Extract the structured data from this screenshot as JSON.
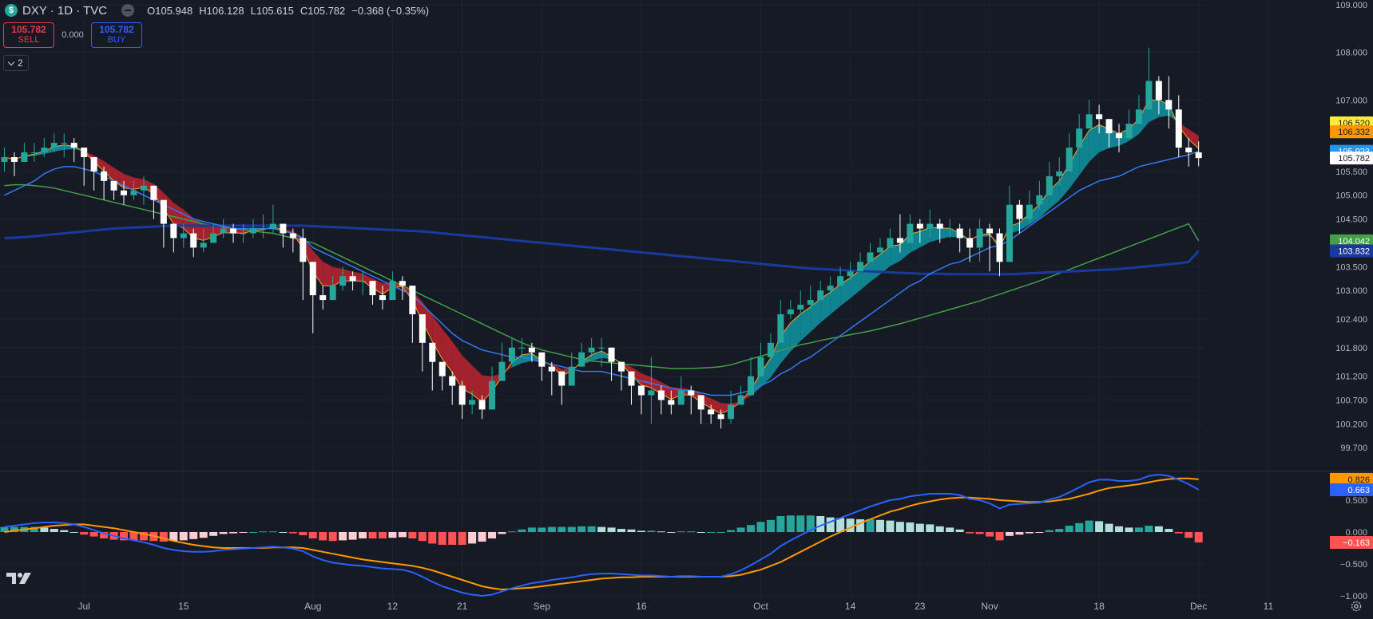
{
  "header": {
    "symbol_icon": "$",
    "symbol_title": "DXY · 1D · TVC",
    "ohlc": {
      "open": "O105.948",
      "high": "H106.128",
      "low": "L105.615",
      "close": "C105.782",
      "change": "−0.368 (−0.35%)"
    }
  },
  "trade": {
    "sell_price": "105.782",
    "sell_label": "SELL",
    "spread": "0.000",
    "buy_price": "105.782",
    "buy_label": "BUY"
  },
  "indicators_toggle": {
    "count": "2"
  },
  "icons": {
    "logo": "tradingview-logo-icon",
    "settings": "gear-icon",
    "collapse": "collapse-icon",
    "chevron": "chevron-down-icon"
  },
  "colors": {
    "background": "#161a25",
    "text": "#d1d4dc",
    "grid": "#1f2330",
    "up_candle": "#26a69a",
    "up_candle_alt": "#22ab94",
    "down_candle": "#ffffff",
    "ribbon_up": "#0f8f9c",
    "ribbon_down": "#b2232f",
    "fast_ma": "#f5a623",
    "ma_blue": "#3179f5",
    "ma_green": "#43a047",
    "ma_navy": "#1a3a9b",
    "macd": "#2962ff",
    "signal": "#ff9800",
    "hist_up": "#26a69a",
    "hist_up_fade": "#b2dfdb",
    "hist_down": "#ff5252",
    "hist_down_fade": "#ffcdd2"
  },
  "chart_data": {
    "type": "candlestick",
    "x_labels": [
      {
        "label": "Jul",
        "i": 8
      },
      {
        "label": "15",
        "i": 18
      },
      {
        "label": "Aug",
        "i": 31
      },
      {
        "label": "12",
        "i": 39
      },
      {
        "label": "21",
        "i": 46
      },
      {
        "label": "Sep",
        "i": 54
      },
      {
        "label": "16",
        "i": 64
      },
      {
        "label": "Oct",
        "i": 76
      },
      {
        "label": "14",
        "i": 85
      },
      {
        "label": "23",
        "i": 92
      },
      {
        "label": "Nov",
        "i": 99
      },
      {
        "label": "18",
        "i": 110
      },
      {
        "label": "Dec",
        "i": 120
      },
      {
        "label": "11",
        "i": 127
      }
    ],
    "y_ticks": [
      "109.000",
      "108.000",
      "107.000",
      "106.500",
      "105.500",
      "105.000",
      "104.500",
      "103.500",
      "103.000",
      "102.400",
      "101.800",
      "101.200",
      "100.700",
      "100.200",
      "99.700"
    ],
    "y_range": [
      99.3,
      109.1
    ],
    "macd_ticks": [
      "0.500",
      "0.000",
      "−0.500",
      "−1.000"
    ],
    "macd_range": [
      -1.1,
      0.9
    ],
    "price_labels": [
      {
        "value": 106.52,
        "text": "106.520",
        "bg": "#ffeb3b",
        "fg": "#131722"
      },
      {
        "value": 106.332,
        "text": "106.332",
        "bg": "#ff9800",
        "fg": "#131722"
      },
      {
        "value": 105.923,
        "text": "105.923",
        "bg": "#2196f3",
        "fg": "#ffffff"
      },
      {
        "value": 105.782,
        "text": "105.782",
        "bg": "#ffffff",
        "fg": "#131722"
      },
      {
        "value": 104.042,
        "text": "104.042",
        "bg": "#43a047",
        "fg": "#ffffff"
      },
      {
        "value": 103.832,
        "text": "103.832",
        "bg": "#1a3a9b",
        "fg": "#ffffff"
      }
    ],
    "macd_labels": [
      {
        "value": 0.826,
        "text": "0.826",
        "bg": "#ff9800",
        "fg": "#131722"
      },
      {
        "value": 0.663,
        "text": "0.663",
        "bg": "#2962ff",
        "fg": "#ffffff"
      },
      {
        "value": -0.163,
        "text": "−0.163",
        "bg": "#ff5252",
        "fg": "#ffffff"
      }
    ],
    "closes": [
      105.8,
      105.7,
      105.9,
      105.9,
      106.0,
      106.1,
      106.1,
      106.0,
      105.8,
      105.5,
      105.3,
      105.1,
      105.0,
      105.1,
      105.2,
      104.9,
      104.4,
      104.1,
      104.2,
      103.9,
      104.0,
      104.2,
      104.3,
      104.2,
      104.2,
      104.3,
      104.3,
      104.4,
      104.2,
      104.1,
      103.6,
      102.9,
      102.8,
      103.1,
      103.3,
      103.2,
      103.2,
      102.9,
      102.8,
      103.2,
      103.1,
      102.5,
      101.9,
      101.5,
      101.2,
      101.0,
      100.6,
      100.7,
      100.5,
      101.1,
      101.5,
      101.8,
      101.8,
      101.7,
      101.4,
      101.3,
      101.0,
      101.4,
      101.7,
      101.8,
      101.8,
      101.5,
      101.3,
      101.0,
      100.8,
      100.9,
      100.7,
      100.6,
      100.9,
      100.8,
      100.5,
      100.4,
      100.3,
      100.6,
      100.8,
      101.2,
      101.6,
      101.9,
      102.5,
      102.6,
      102.7,
      102.8,
      103.0,
      103.1,
      103.3,
      103.4,
      103.6,
      103.8,
      103.9,
      104.1,
      104.0,
      104.4,
      104.3,
      104.4,
      104.3,
      104.3,
      104.1,
      103.9,
      104.3,
      104.2,
      103.6,
      104.8,
      104.5,
      104.8,
      105.0,
      105.4,
      105.5,
      106.0,
      106.4,
      106.7,
      106.6,
      106.3,
      106.2,
      106.5,
      106.8,
      107.4,
      107.0,
      106.8,
      106.0,
      105.9,
      105.78
    ],
    "highs": [
      106.0,
      105.9,
      106.1,
      106.1,
      106.2,
      106.3,
      106.3,
      106.2,
      106.0,
      105.8,
      105.6,
      105.3,
      105.3,
      105.3,
      105.4,
      105.1,
      104.8,
      104.4,
      104.4,
      104.3,
      104.3,
      104.4,
      104.5,
      104.4,
      104.4,
      104.5,
      104.6,
      104.8,
      104.4,
      104.3,
      104.3,
      103.1,
      103.1,
      103.3,
      103.5,
      103.4,
      103.4,
      103.2,
      103.1,
      103.4,
      103.3,
      103.1,
      102.3,
      101.8,
      101.5,
      101.3,
      101.1,
      100.9,
      100.8,
      101.4,
      101.9,
      102.0,
      102.0,
      101.9,
      101.7,
      101.5,
      101.3,
      101.7,
      101.9,
      102.0,
      102.0,
      101.8,
      101.5,
      101.3,
      101.0,
      101.6,
      101.0,
      100.9,
      101.2,
      101.0,
      100.8,
      100.6,
      100.5,
      100.9,
      101.0,
      101.6,
      101.9,
      102.1,
      102.8,
      102.8,
      103.0,
      103.1,
      103.2,
      103.3,
      103.5,
      103.6,
      103.8,
      104.0,
      104.1,
      104.3,
      104.6,
      104.6,
      104.5,
      104.7,
      104.5,
      104.5,
      104.4,
      104.3,
      104.5,
      104.4,
      104.3,
      105.2,
      104.9,
      105.1,
      105.3,
      105.7,
      105.8,
      106.3,
      106.7,
      107.0,
      106.9,
      106.6,
      106.5,
      106.8,
      107.1,
      108.1,
      107.5,
      107.5,
      107.1,
      106.2,
      106.13
    ],
    "lows": [
      105.5,
      105.4,
      105.7,
      105.7,
      105.8,
      105.9,
      105.8,
      105.7,
      105.2,
      105.1,
      104.9,
      104.9,
      104.8,
      104.9,
      104.8,
      104.5,
      103.9,
      103.8,
      103.9,
      103.7,
      103.8,
      104.0,
      104.1,
      104.0,
      104.0,
      104.1,
      104.1,
      104.2,
      103.9,
      103.8,
      102.8,
      102.1,
      102.6,
      102.9,
      103.0,
      103.0,
      102.9,
      102.7,
      102.6,
      103.0,
      102.8,
      101.9,
      101.3,
      100.9,
      100.9,
      100.6,
      100.3,
      100.4,
      100.3,
      100.5,
      101.1,
      101.5,
      101.6,
      101.5,
      101.1,
      100.8,
      100.6,
      101.1,
      101.4,
      101.6,
      101.4,
      101.1,
      100.9,
      100.6,
      100.4,
      100.2,
      100.4,
      100.4,
      100.6,
      100.4,
      100.2,
      100.2,
      100.1,
      100.2,
      100.6,
      100.8,
      101.3,
      101.7,
      102.2,
      102.4,
      102.5,
      102.6,
      102.8,
      102.9,
      103.1,
      103.2,
      103.4,
      103.6,
      103.7,
      103.9,
      103.8,
      104.2,
      104.0,
      104.1,
      104.0,
      104.1,
      103.8,
      103.6,
      103.6,
      103.4,
      103.3,
      104.0,
      104.2,
      104.4,
      104.7,
      105.1,
      105.2,
      105.7,
      106.1,
      106.4,
      106.3,
      106.0,
      105.9,
      106.2,
      106.5,
      107.0,
      106.7,
      106.4,
      105.8,
      105.6,
      105.61
    ],
    "ma_blue": [
      105.0,
      105.1,
      105.2,
      105.3,
      105.45,
      105.55,
      105.6,
      105.6,
      105.55,
      105.5,
      105.4,
      105.3,
      105.2,
      105.1,
      105.0,
      104.9,
      104.8,
      104.7,
      104.6,
      104.5,
      104.45,
      104.4,
      104.35,
      104.3,
      104.3,
      104.3,
      104.3,
      104.3,
      104.25,
      104.2,
      104.1,
      103.9,
      103.8,
      103.7,
      103.6,
      103.5,
      103.4,
      103.3,
      103.2,
      103.1,
      103.0,
      102.9,
      102.7,
      102.5,
      102.3,
      102.1,
      101.95,
      101.85,
      101.75,
      101.7,
      101.65,
      101.6,
      101.6,
      101.55,
      101.5,
      101.45,
      101.4,
      101.35,
      101.3,
      101.3,
      101.3,
      101.25,
      101.2,
      101.15,
      101.1,
      101.05,
      101.0,
      100.95,
      100.9,
      100.9,
      100.85,
      100.8,
      100.8,
      100.8,
      100.85,
      100.9,
      101.0,
      101.1,
      101.25,
      101.35,
      101.5,
      101.6,
      101.75,
      101.9,
      102.05,
      102.2,
      102.35,
      102.5,
      102.65,
      102.8,
      102.95,
      103.1,
      103.2,
      103.35,
      103.45,
      103.55,
      103.6,
      103.7,
      103.8,
      103.9,
      103.95,
      104.05,
      104.2,
      104.35,
      104.5,
      104.65,
      104.8,
      104.95,
      105.1,
      105.2,
      105.3,
      105.35,
      105.4,
      105.5,
      105.6,
      105.65,
      105.7,
      105.75,
      105.8,
      105.85,
      105.923
    ],
    "ma_green": [
      105.2,
      105.22,
      105.22,
      105.2,
      105.18,
      105.15,
      105.1,
      105.05,
      105.0,
      104.95,
      104.9,
      104.85,
      104.8,
      104.75,
      104.7,
      104.65,
      104.6,
      104.55,
      104.5,
      104.45,
      104.4,
      104.36,
      104.33,
      104.3,
      104.28,
      104.25,
      104.22,
      104.2,
      104.15,
      104.1,
      104.05,
      104.0,
      103.9,
      103.8,
      103.7,
      103.6,
      103.5,
      103.4,
      103.3,
      103.2,
      103.1,
      103.0,
      102.9,
      102.8,
      102.7,
      102.6,
      102.5,
      102.4,
      102.3,
      102.2,
      102.1,
      102.0,
      101.9,
      101.82,
      101.75,
      101.7,
      101.65,
      101.6,
      101.55,
      101.52,
      101.5,
      101.48,
      101.46,
      101.44,
      101.42,
      101.4,
      101.38,
      101.36,
      101.36,
      101.36,
      101.37,
      101.38,
      101.4,
      101.44,
      101.5,
      101.56,
      101.62,
      101.68,
      101.74,
      101.8,
      101.86,
      101.9,
      101.95,
      101.99,
      102.03,
      102.07,
      102.11,
      102.15,
      102.2,
      102.25,
      102.3,
      102.36,
      102.42,
      102.48,
      102.54,
      102.6,
      102.66,
      102.72,
      102.78,
      102.85,
      102.92,
      102.99,
      103.06,
      103.13,
      103.2,
      103.28,
      103.36,
      103.44,
      103.52,
      103.6,
      103.68,
      103.76,
      103.84,
      103.92,
      104.0,
      104.08,
      104.16,
      104.24,
      104.32,
      104.4,
      104.042
    ],
    "ma_navy": [
      104.1,
      104.11,
      104.12,
      104.14,
      104.16,
      104.18,
      104.2,
      104.22,
      104.24,
      104.26,
      104.28,
      104.3,
      104.31,
      104.32,
      104.33,
      104.34,
      104.35,
      104.36,
      104.36,
      104.36,
      104.36,
      104.36,
      104.36,
      104.36,
      104.36,
      104.36,
      104.36,
      104.36,
      104.36,
      104.36,
      104.36,
      104.35,
      104.34,
      104.33,
      104.32,
      104.31,
      104.3,
      104.29,
      104.28,
      104.27,
      104.26,
      104.25,
      104.24,
      104.22,
      104.2,
      104.18,
      104.16,
      104.14,
      104.12,
      104.1,
      104.08,
      104.06,
      104.04,
      104.02,
      104.0,
      103.98,
      103.96,
      103.94,
      103.92,
      103.9,
      103.88,
      103.86,
      103.84,
      103.82,
      103.8,
      103.78,
      103.76,
      103.74,
      103.72,
      103.7,
      103.68,
      103.66,
      103.64,
      103.62,
      103.6,
      103.58,
      103.56,
      103.54,
      103.52,
      103.5,
      103.48,
      103.46,
      103.45,
      103.44,
      103.43,
      103.42,
      103.41,
      103.4,
      103.39,
      103.38,
      103.37,
      103.36,
      103.35,
      103.35,
      103.35,
      103.34,
      103.34,
      103.34,
      103.34,
      103.34,
      103.34,
      103.34,
      103.35,
      103.36,
      103.37,
      103.38,
      103.39,
      103.4,
      103.41,
      103.42,
      103.43,
      103.44,
      103.45,
      103.47,
      103.49,
      103.51,
      103.53,
      103.55,
      103.57,
      103.6,
      103.832
    ],
    "macd": [
      0.08,
      0.1,
      0.12,
      0.14,
      0.15,
      0.15,
      0.14,
      0.12,
      0.08,
      0.03,
      -0.02,
      -0.06,
      -0.1,
      -0.13,
      -0.16,
      -0.2,
      -0.25,
      -0.28,
      -0.3,
      -0.31,
      -0.31,
      -0.3,
      -0.28,
      -0.27,
      -0.26,
      -0.25,
      -0.24,
      -0.23,
      -0.24,
      -0.26,
      -0.3,
      -0.38,
      -0.44,
      -0.48,
      -0.5,
      -0.52,
      -0.53,
      -0.55,
      -0.57,
      -0.58,
      -0.59,
      -0.63,
      -0.7,
      -0.78,
      -0.85,
      -0.9,
      -0.95,
      -0.98,
      -1.0,
      -0.98,
      -0.93,
      -0.88,
      -0.84,
      -0.8,
      -0.78,
      -0.75,
      -0.73,
      -0.71,
      -0.68,
      -0.66,
      -0.65,
      -0.65,
      -0.66,
      -0.67,
      -0.68,
      -0.68,
      -0.69,
      -0.7,
      -0.69,
      -0.69,
      -0.7,
      -0.7,
      -0.7,
      -0.66,
      -0.6,
      -0.52,
      -0.43,
      -0.34,
      -0.22,
      -0.13,
      -0.05,
      0.03,
      0.1,
      0.16,
      0.22,
      0.28,
      0.34,
      0.4,
      0.45,
      0.5,
      0.52,
      0.56,
      0.58,
      0.6,
      0.6,
      0.6,
      0.58,
      0.52,
      0.5,
      0.45,
      0.37,
      0.43,
      0.44,
      0.45,
      0.46,
      0.51,
      0.55,
      0.62,
      0.7,
      0.78,
      0.82,
      0.82,
      0.8,
      0.8,
      0.82,
      0.88,
      0.9,
      0.88,
      0.82,
      0.75,
      0.663
    ],
    "signal": [
      0.0,
      0.02,
      0.04,
      0.06,
      0.08,
      0.1,
      0.11,
      0.12,
      0.12,
      0.1,
      0.08,
      0.06,
      0.03,
      0.0,
      -0.03,
      -0.06,
      -0.1,
      -0.14,
      -0.17,
      -0.2,
      -0.22,
      -0.24,
      -0.25,
      -0.25,
      -0.25,
      -0.25,
      -0.25,
      -0.24,
      -0.24,
      -0.24,
      -0.25,
      -0.28,
      -0.31,
      -0.34,
      -0.37,
      -0.4,
      -0.43,
      -0.45,
      -0.47,
      -0.49,
      -0.51,
      -0.53,
      -0.56,
      -0.6,
      -0.65,
      -0.7,
      -0.75,
      -0.8,
      -0.85,
      -0.88,
      -0.9,
      -0.89,
      -0.88,
      -0.87,
      -0.85,
      -0.83,
      -0.81,
      -0.79,
      -0.77,
      -0.75,
      -0.73,
      -0.72,
      -0.71,
      -0.71,
      -0.7,
      -0.7,
      -0.7,
      -0.7,
      -0.7,
      -0.7,
      -0.7,
      -0.7,
      -0.7,
      -0.69,
      -0.67,
      -0.63,
      -0.59,
      -0.53,
      -0.47,
      -0.39,
      -0.31,
      -0.23,
      -0.15,
      -0.07,
      0.0,
      0.07,
      0.14,
      0.2,
      0.26,
      0.32,
      0.36,
      0.41,
      0.45,
      0.48,
      0.51,
      0.53,
      0.54,
      0.54,
      0.53,
      0.52,
      0.5,
      0.49,
      0.48,
      0.47,
      0.47,
      0.48,
      0.5,
      0.52,
      0.56,
      0.6,
      0.65,
      0.69,
      0.71,
      0.73,
      0.75,
      0.78,
      0.81,
      0.83,
      0.84,
      0.84,
      0.826
    ],
    "histogram": [
      0.08,
      0.08,
      0.08,
      0.08,
      0.07,
      0.05,
      0.03,
      0.0,
      -0.04,
      -0.07,
      -0.1,
      -0.12,
      -0.13,
      -0.13,
      -0.13,
      -0.14,
      -0.15,
      -0.14,
      -0.13,
      -0.11,
      -0.09,
      -0.06,
      -0.03,
      -0.02,
      -0.01,
      0.0,
      0.01,
      0.01,
      0.0,
      -0.02,
      -0.05,
      -0.1,
      -0.13,
      -0.14,
      -0.13,
      -0.12,
      -0.1,
      -0.1,
      -0.1,
      -0.09,
      -0.08,
      -0.1,
      -0.14,
      -0.18,
      -0.2,
      -0.2,
      -0.2,
      -0.18,
      -0.15,
      -0.1,
      -0.03,
      0.01,
      0.04,
      0.07,
      0.07,
      0.08,
      0.08,
      0.08,
      0.09,
      0.09,
      0.08,
      0.07,
      0.05,
      0.04,
      0.02,
      0.02,
      0.01,
      0.0,
      0.01,
      0.01,
      0.0,
      0.0,
      0.0,
      0.03,
      0.07,
      0.11,
      0.16,
      0.19,
      0.25,
      0.26,
      0.26,
      0.26,
      0.25,
      0.23,
      0.22,
      0.21,
      0.2,
      0.2,
      0.19,
      0.18,
      0.16,
      0.15,
      0.13,
      0.12,
      0.09,
      0.07,
      0.04,
      -0.02,
      -0.03,
      -0.07,
      -0.13,
      -0.06,
      -0.04,
      -0.02,
      -0.01,
      0.03,
      0.05,
      0.1,
      0.14,
      0.18,
      0.17,
      0.13,
      0.09,
      0.07,
      0.07,
      0.1,
      0.09,
      0.05,
      -0.02,
      -0.09,
      -0.163
    ]
  }
}
